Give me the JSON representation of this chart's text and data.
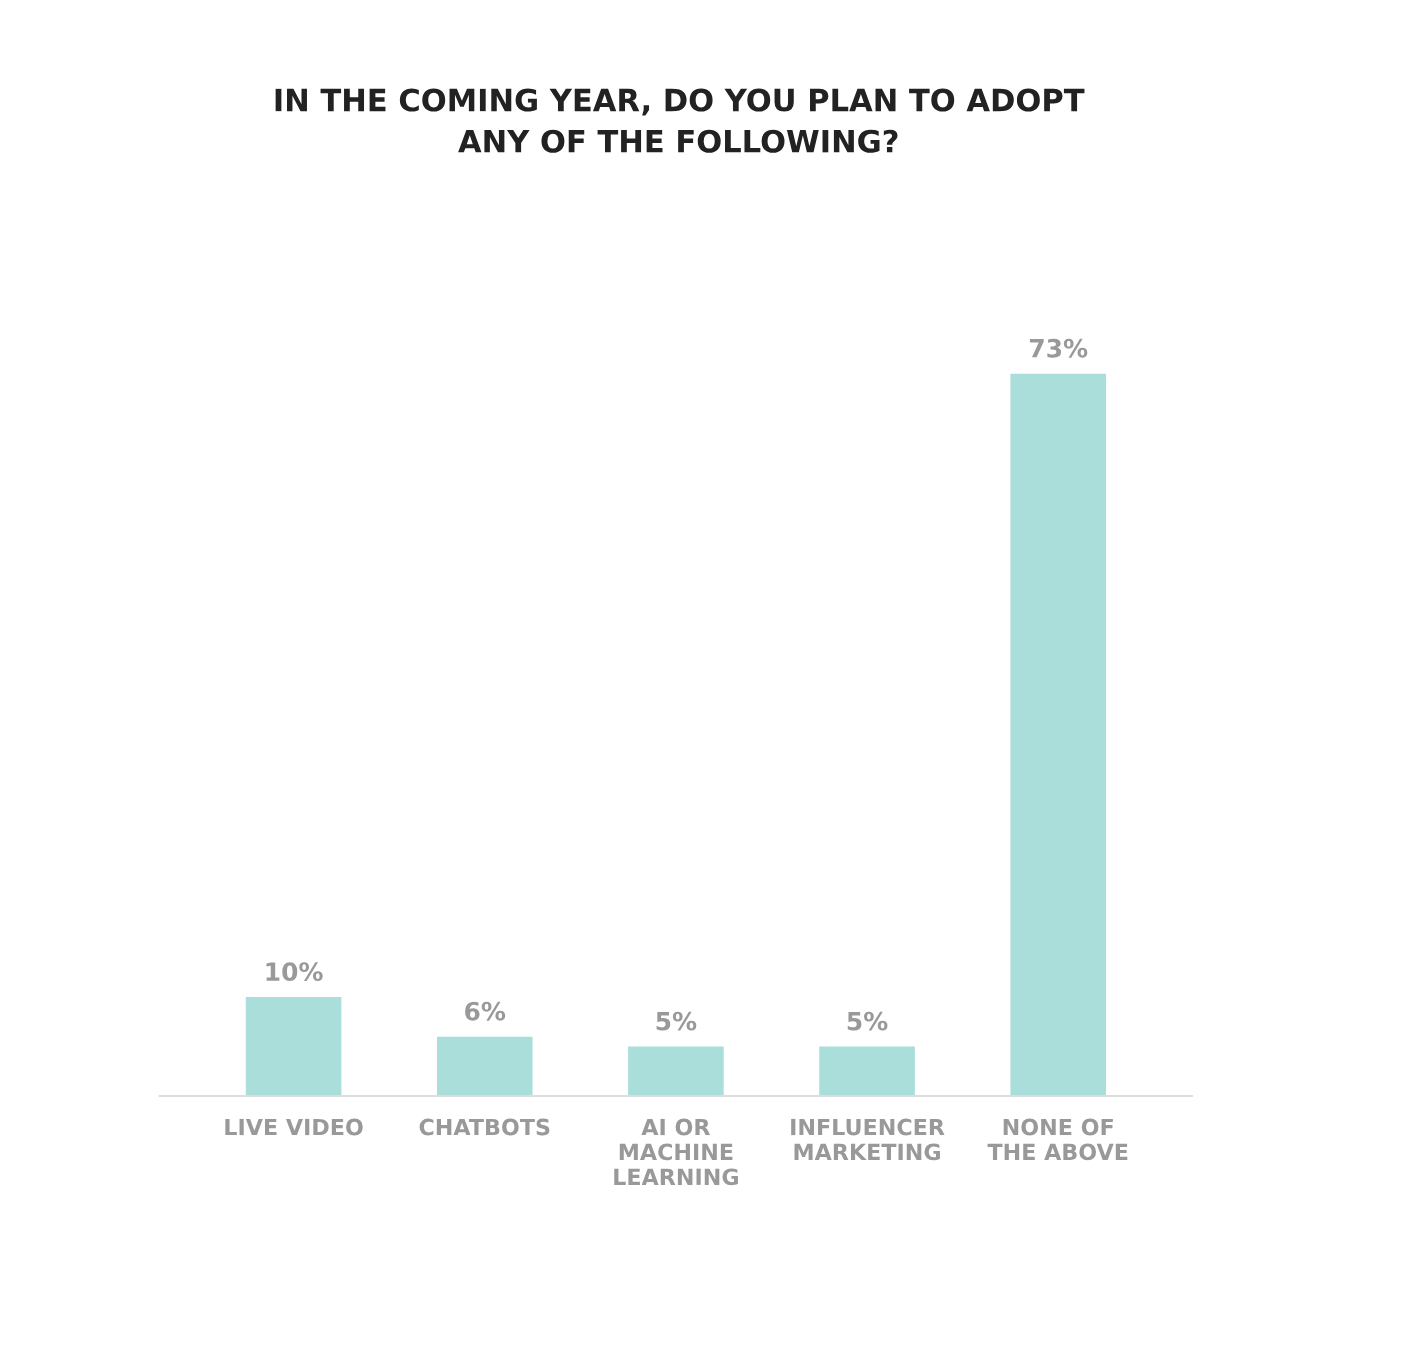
{
  "chart_data": {
    "type": "bar",
    "title": "IN THE COMING YEAR, DO YOU PLAN TO ADOPT\nANY OF THE FOLLOWING?",
    "categories": [
      "LIVE VIDEO",
      "CHATBOTS",
      "AI OR MACHINE LEARNING",
      "INFLUENCER MARKETING",
      "NONE OF THE ABOVE"
    ],
    "values": [
      10,
      6,
      5,
      5,
      73
    ],
    "value_labels": [
      "10%",
      "6%",
      "5%",
      "5%",
      "73%"
    ],
    "color": "#a9dedb"
  }
}
